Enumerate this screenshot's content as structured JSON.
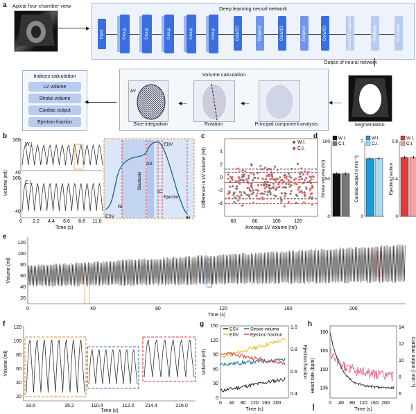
{
  "panel_labels": {
    "a": "a",
    "b": "b",
    "c": "c",
    "d": "d",
    "e": "e",
    "f": "f",
    "g": "g",
    "h": "h"
  },
  "panel_a": {
    "view_label": "Apical four-chamber view",
    "network_title": "Deep learning neural network",
    "layers": [
      "Input",
      "Group",
      "Group",
      "Group",
      "Group",
      "Group",
      "Conv2D",
      "Dropout",
      "Conv2D",
      "Dropout",
      "Conv2D",
      "Conv2DTranspose",
      "Reshape",
      "Activation"
    ],
    "output_label": "Output of neural network",
    "volume_title": "Volume calculation",
    "indices_title": "Indices calculation",
    "indices": [
      "LV volume",
      "Stroke volume",
      "Cardiac output",
      "Ejection fraction"
    ],
    "steps": [
      "Slice integration",
      "Rotation",
      "Principal component analysis",
      "Segmentation"
    ],
    "dv_label": "ΔV"
  },
  "panel_b": {
    "wi_label": "W.I.",
    "ci_label": "C.I.",
    "ylabel": "Volume (ml)",
    "xlabel": "Time (s)",
    "yticks": [
      "160",
      "40"
    ],
    "xticks": [
      "0",
      "2.2",
      "4.4",
      "6.6",
      "8.8",
      "11.0"
    ],
    "phases": {
      "esv": "ESV",
      "edv": "EDV",
      "ri": "RI",
      "diastasis": "Diastasis",
      "as": "AS",
      "ic": "IC",
      "ejection": "Ejection",
      "ir": "IR"
    }
  },
  "chart_data": [
    {
      "type": "scatter",
      "id": "c",
      "xlabel": "Average LV volume (ml)",
      "ylabel": "Difference in LV volume (ml)",
      "xticks": [
        60,
        80,
        100,
        120
      ],
      "yticks": [
        4,
        2,
        0,
        -2,
        -4
      ],
      "xlim": [
        52,
        138
      ],
      "ylim": [
        -6,
        6
      ],
      "legend": [
        "W.I.",
        "C.I."
      ],
      "series": [
        {
          "name": "W.I.",
          "color": "#555555"
        },
        {
          "name": "C.I.",
          "color": "#e23a3a"
        }
      ],
      "lines": {
        "mean": -0.8,
        "loa_wi": [
          1.3,
          -3.3
        ],
        "loa_ci": [
          0.8,
          -4.0
        ]
      }
    },
    {
      "type": "bar",
      "id": "d",
      "panels": [
        {
          "ylabel": "Stroke volume (ml)",
          "yticks": [
            "100",
            "50",
            "0"
          ],
          "ymax": 100,
          "values": [
            57,
            57
          ],
          "colors": [
            "#111111",
            "#777777"
          ]
        },
        {
          "ylabel": "Cardiac output (l min⁻¹)",
          "yticks": [
            "7",
            "0"
          ],
          "ymax": 7,
          "values": [
            5.4,
            5.4
          ],
          "colors": [
            "#1a9ad6",
            "#a9daf3"
          ]
        },
        {
          "ylabel": "Ejection fraction",
          "yticks": [
            "0.8",
            "0.4",
            "0"
          ],
          "ymax": 0.8,
          "values": [
            0.63,
            0.63
          ],
          "colors": [
            "#e23a3a",
            "#f3a3a3"
          ]
        }
      ],
      "legend": [
        "W.I.",
        "C.I."
      ]
    },
    {
      "type": "line",
      "id": "e",
      "xlabel": "Time (s)",
      "ylabel": "Volume (ml)",
      "xticks": [
        0,
        40,
        80,
        120,
        160,
        200
      ],
      "yticks": [
        120,
        100,
        80,
        60,
        40,
        20
      ],
      "xlim": [
        0,
        232
      ],
      "ylim": [
        10,
        130
      ],
      "trend_upper_start": 80,
      "trend_upper_end": 118,
      "trend_lower_start": 40,
      "trend_lower_end": 48
    },
    {
      "type": "line",
      "id": "f",
      "xlabel": "Time (s)",
      "ylabel": "Volume (ml)",
      "yticks": [
        "120",
        "100",
        "80",
        "60",
        "40",
        "20"
      ],
      "xticks": [
        "33.6",
        "35.2",
        "110.4",
        "112.0",
        "214.4",
        "216.0"
      ]
    },
    {
      "type": "line",
      "id": "g",
      "xlabel": "Time (s)",
      "ylabel": "Volume (ml)",
      "y2label": "Ejection fraction",
      "xticks": [
        0,
        40,
        80,
        120,
        160,
        200
      ],
      "yticks": [
        150,
        120,
        90,
        60,
        30,
        0
      ],
      "y2ticks": [
        "1.0",
        "0.8",
        "0.6",
        "0.4"
      ],
      "legend": [
        "ESV",
        "EDV",
        "Stroke volume",
        "Ejection fraction"
      ],
      "colors": [
        "#222222",
        "#e3c020",
        "#1b6d8a",
        "#e23a3a"
      ]
    },
    {
      "type": "line",
      "id": "h",
      "xlabel": "Time (s)",
      "ylabel": "Heart rate (bpm)",
      "y2label": "Cardiac output (l min⁻¹)",
      "xticks": [
        0,
        40,
        80,
        120,
        160,
        200
      ],
      "yticks": [
        180,
        165,
        150,
        135
      ],
      "y2ticks": [
        "14",
        "12",
        "10",
        "8",
        "6"
      ],
      "legend": [
        "Heart rate (bpm)",
        "Cardiac output (l min⁻¹)"
      ],
      "colors": [
        "#222222",
        "#e0607a"
      ]
    }
  ]
}
